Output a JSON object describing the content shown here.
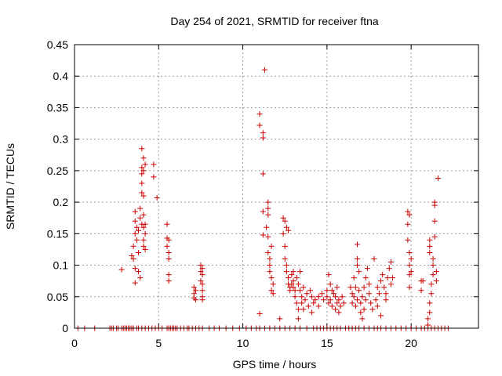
{
  "chart_data": {
    "type": "scatter",
    "title": "Day 254 of 2021, SRMTID for receiver ftna",
    "xlabel": "GPS time / hours",
    "ylabel": "SRMTID / TECUs",
    "xlim": [
      0,
      24
    ],
    "ylim": [
      0,
      0.45
    ],
    "xticks": [
      0,
      5,
      10,
      15,
      20
    ],
    "xtick_labels": [
      "0",
      "5",
      "10",
      "15",
      "20"
    ],
    "yticks": [
      0,
      0.05,
      0.1,
      0.15,
      0.2,
      0.25,
      0.3,
      0.35,
      0.4,
      0.45
    ],
    "ytick_labels": [
      "0",
      "0.05",
      "0.1",
      "0.15",
      "0.2",
      "0.25",
      "0.3",
      "0.35",
      "0.4",
      "0.45"
    ],
    "grid": true,
    "marker": "plus",
    "color": "#cc0000",
    "series": [
      {
        "points": [
          [
            0.2,
            0
          ],
          [
            0.6,
            0
          ],
          [
            1.2,
            0
          ],
          [
            2.1,
            0
          ],
          [
            2.2,
            0
          ],
          [
            2.3,
            0
          ],
          [
            2.5,
            0
          ],
          [
            2.6,
            0
          ],
          [
            2.8,
            0
          ],
          [
            2.9,
            0
          ],
          [
            3.0,
            0
          ],
          [
            3.1,
            0
          ],
          [
            3.2,
            0
          ],
          [
            3.3,
            0
          ],
          [
            3.4,
            0
          ],
          [
            3.5,
            0
          ],
          [
            3.7,
            0
          ],
          [
            3.8,
            0
          ],
          [
            4.0,
            0
          ],
          [
            4.2,
            0
          ],
          [
            4.4,
            0
          ],
          [
            4.6,
            0
          ],
          [
            4.8,
            0
          ],
          [
            5.0,
            0
          ],
          [
            5.2,
            0
          ],
          [
            5.5,
            0
          ],
          [
            5.6,
            0
          ],
          [
            5.7,
            0
          ],
          [
            5.8,
            0
          ],
          [
            5.9,
            0
          ],
          [
            6.0,
            0
          ],
          [
            6.1,
            0
          ],
          [
            6.3,
            0
          ],
          [
            6.5,
            0
          ],
          [
            6.7,
            0
          ],
          [
            6.8,
            0
          ],
          [
            7.0,
            0
          ],
          [
            7.2,
            0
          ],
          [
            7.4,
            0
          ],
          [
            7.6,
            0
          ],
          [
            8.0,
            0
          ],
          [
            8.3,
            0
          ],
          [
            8.6,
            0
          ],
          [
            9.0,
            0
          ],
          [
            9.4,
            0
          ],
          [
            9.8,
            0
          ],
          [
            10.2,
            0
          ],
          [
            10.5,
            0
          ],
          [
            10.8,
            0
          ],
          [
            11.0,
            0
          ],
          [
            11.3,
            0
          ],
          [
            11.6,
            0
          ],
          [
            11.9,
            0
          ],
          [
            12.2,
            0
          ],
          [
            12.5,
            0
          ],
          [
            12.8,
            0
          ],
          [
            13.1,
            0
          ],
          [
            13.4,
            0
          ],
          [
            13.8,
            0
          ],
          [
            14.2,
            0
          ],
          [
            14.4,
            0
          ],
          [
            14.6,
            0
          ],
          [
            14.8,
            0
          ],
          [
            15.0,
            0
          ],
          [
            15.2,
            0
          ],
          [
            15.4,
            0
          ],
          [
            15.6,
            0
          ],
          [
            15.8,
            0
          ],
          [
            16.1,
            0
          ],
          [
            16.3,
            0
          ],
          [
            16.5,
            0
          ],
          [
            16.7,
            0
          ],
          [
            16.9,
            0
          ],
          [
            17.2,
            0
          ],
          [
            17.5,
            0
          ],
          [
            17.8,
            0
          ],
          [
            18.0,
            0
          ],
          [
            18.2,
            0
          ],
          [
            18.5,
            0
          ],
          [
            18.8,
            0
          ],
          [
            19.1,
            0
          ],
          [
            19.4,
            0
          ],
          [
            19.7,
            0
          ],
          [
            20.0,
            0
          ],
          [
            20.3,
            0
          ],
          [
            20.6,
            0
          ],
          [
            20.8,
            0
          ],
          [
            21.0,
            0
          ],
          [
            21.2,
            0
          ],
          [
            21.4,
            0
          ],
          [
            21.6,
            0
          ],
          [
            21.8,
            0
          ],
          [
            22.0,
            0
          ],
          [
            22.2,
            0
          ],
          [
            2.8,
            0.093
          ],
          [
            3.4,
            0.115
          ],
          [
            3.5,
            0.11
          ],
          [
            3.5,
            0.13
          ],
          [
            3.6,
            0.15
          ],
          [
            3.6,
            0.17
          ],
          [
            3.6,
            0.185
          ],
          [
            3.6,
            0.095
          ],
          [
            3.6,
            0.072
          ],
          [
            3.7,
            0.16
          ],
          [
            3.7,
            0.14
          ],
          [
            3.8,
            0.155
          ],
          [
            3.8,
            0.12
          ],
          [
            3.8,
            0.09
          ],
          [
            3.9,
            0.08
          ],
          [
            3.9,
            0.175
          ],
          [
            3.9,
            0.19
          ],
          [
            4.0,
            0.165
          ],
          [
            4.0,
            0.215
          ],
          [
            4.0,
            0.23
          ],
          [
            4.0,
            0.245
          ],
          [
            4.0,
            0.255
          ],
          [
            4.0,
            0.285
          ],
          [
            4.1,
            0.27
          ],
          [
            4.1,
            0.25
          ],
          [
            4.1,
            0.21
          ],
          [
            4.1,
            0.18
          ],
          [
            4.1,
            0.16
          ],
          [
            4.1,
            0.14
          ],
          [
            4.1,
            0.13
          ],
          [
            4.2,
            0.125
          ],
          [
            4.2,
            0.15
          ],
          [
            4.2,
            0.165
          ],
          [
            4.2,
            0.26
          ],
          [
            4.7,
            0.26
          ],
          [
            4.7,
            0.24
          ],
          [
            4.9,
            0.207
          ],
          [
            5.5,
            0.165
          ],
          [
            5.5,
            0.143
          ],
          [
            5.5,
            0.13
          ],
          [
            5.6,
            0.12
          ],
          [
            5.6,
            0.14
          ],
          [
            5.6,
            0.11
          ],
          [
            5.6,
            0.085
          ],
          [
            5.6,
            0.075
          ],
          [
            7.1,
            0.065
          ],
          [
            7.1,
            0.055
          ],
          [
            7.1,
            0.048
          ],
          [
            7.2,
            0.06
          ],
          [
            7.2,
            0.045
          ],
          [
            7.5,
            0.1
          ],
          [
            7.5,
            0.09
          ],
          [
            7.5,
            0.075
          ],
          [
            7.6,
            0.07
          ],
          [
            7.6,
            0.06
          ],
          [
            7.6,
            0.05
          ],
          [
            7.6,
            0.045
          ],
          [
            7.6,
            0.095
          ],
          [
            7.6,
            0.085
          ],
          [
            11.0,
            0.023
          ],
          [
            11.0,
            0.34
          ],
          [
            11.0,
            0.322
          ],
          [
            11.2,
            0.31
          ],
          [
            11.2,
            0.302
          ],
          [
            11.2,
            0.245
          ],
          [
            11.2,
            0.185
          ],
          [
            11.2,
            0.148
          ],
          [
            11.3,
            0.41
          ],
          [
            11.4,
            0.16
          ],
          [
            11.5,
            0.2
          ],
          [
            11.5,
            0.19
          ],
          [
            11.5,
            0.18
          ],
          [
            11.5,
            0.145
          ],
          [
            11.5,
            0.12
          ],
          [
            11.6,
            0.11
          ],
          [
            11.6,
            0.1
          ],
          [
            11.6,
            0.09
          ],
          [
            11.7,
            0.13
          ],
          [
            11.7,
            0.08
          ],
          [
            11.7,
            0.06
          ],
          [
            11.8,
            0.07
          ],
          [
            11.8,
            0.055
          ],
          [
            12.2,
            0.015
          ],
          [
            12.4,
            0.175
          ],
          [
            12.4,
            0.15
          ],
          [
            12.5,
            0.17
          ],
          [
            12.5,
            0.13
          ],
          [
            12.5,
            0.11
          ],
          [
            12.6,
            0.16
          ],
          [
            12.6,
            0.1
          ],
          [
            12.6,
            0.09
          ],
          [
            12.7,
            0.155
          ],
          [
            12.7,
            0.08
          ],
          [
            12.7,
            0.07
          ],
          [
            12.8,
            0.065
          ],
          [
            12.8,
            0.06
          ],
          [
            12.9,
            0.085
          ],
          [
            12.9,
            0.07
          ],
          [
            13.0,
            0.075
          ],
          [
            13.0,
            0.065
          ],
          [
            13.0,
            0.09
          ],
          [
            13.1,
            0.06
          ],
          [
            13.1,
            0.05
          ],
          [
            13.2,
            0.04
          ],
          [
            13.2,
            0.08
          ],
          [
            13.3,
            0.07
          ],
          [
            13.3,
            0.03
          ],
          [
            13.3,
            0.015
          ],
          [
            13.4,
            0.09
          ],
          [
            13.4,
            0.06
          ],
          [
            13.5,
            0.05
          ],
          [
            13.5,
            0.04
          ],
          [
            13.6,
            0.03
          ],
          [
            13.6,
            0.065
          ],
          [
            13.7,
            0.045
          ],
          [
            13.8,
            0.055
          ],
          [
            13.9,
            0.035
          ],
          [
            14.0,
            0.06
          ],
          [
            14.1,
            0.05
          ],
          [
            14.1,
            0.025
          ],
          [
            14.2,
            0.04
          ],
          [
            14.3,
            0.045
          ],
          [
            14.5,
            0.05
          ],
          [
            14.5,
            0.035
          ],
          [
            14.7,
            0.055
          ],
          [
            14.8,
            0.045
          ],
          [
            15.0,
            0.05
          ],
          [
            15.0,
            0.06
          ],
          [
            15.1,
            0.085
          ],
          [
            15.1,
            0.04
          ],
          [
            15.2,
            0.07
          ],
          [
            15.2,
            0.045
          ],
          [
            15.3,
            0.06
          ],
          [
            15.3,
            0.035
          ],
          [
            15.4,
            0.055
          ],
          [
            15.5,
            0.03
          ],
          [
            15.5,
            0.05
          ],
          [
            15.6,
            0.065
          ],
          [
            15.6,
            0.04
          ],
          [
            15.7,
            0.025
          ],
          [
            15.7,
            0.045
          ],
          [
            15.8,
            0.035
          ],
          [
            15.9,
            0.05
          ],
          [
            16.0,
            0.04
          ],
          [
            16.4,
            0.065
          ],
          [
            16.5,
            0.055
          ],
          [
            16.5,
            0.04
          ],
          [
            16.6,
            0.08
          ],
          [
            16.6,
            0.05
          ],
          [
            16.7,
            0.035
          ],
          [
            16.7,
            0.065
          ],
          [
            16.8,
            0.045
          ],
          [
            16.8,
            0.1
          ],
          [
            16.8,
            0.11
          ],
          [
            16.8,
            0.133
          ],
          [
            16.9,
            0.09
          ],
          [
            16.9,
            0.06
          ],
          [
            17.0,
            0.04
          ],
          [
            17.0,
            0.025
          ],
          [
            17.1,
            0.015
          ],
          [
            17.1,
            0.05
          ],
          [
            17.2,
            0.03
          ],
          [
            17.2,
            0.065
          ],
          [
            17.3,
            0.045
          ],
          [
            17.3,
            0.08
          ],
          [
            17.4,
            0.095
          ],
          [
            17.5,
            0.07
          ],
          [
            17.5,
            0.055
          ],
          [
            17.6,
            0.04
          ],
          [
            17.7,
            0.03
          ],
          [
            17.8,
            0.11
          ],
          [
            17.9,
            0.045
          ],
          [
            18.0,
            0.065
          ],
          [
            18.0,
            0.035
          ],
          [
            18.1,
            0.055
          ],
          [
            18.2,
            0.02
          ],
          [
            18.2,
            0.075
          ],
          [
            18.3,
            0.085
          ],
          [
            18.4,
            0.065
          ],
          [
            18.5,
            0.055
          ],
          [
            18.5,
            0.045
          ],
          [
            18.6,
            0.08
          ],
          [
            18.7,
            0.095
          ],
          [
            18.8,
            0.105
          ],
          [
            18.8,
            0.07
          ],
          [
            18.9,
            0.08
          ],
          [
            19.8,
            0.185
          ],
          [
            19.8,
            0.165
          ],
          [
            19.8,
            0.14
          ],
          [
            19.9,
            0.12
          ],
          [
            19.9,
            0.1
          ],
          [
            19.9,
            0.085
          ],
          [
            19.9,
            0.065
          ],
          [
            19.9,
            0.18
          ],
          [
            20.0,
            0.11
          ],
          [
            20.0,
            0.09
          ],
          [
            20.6,
            0.075
          ],
          [
            20.6,
            0.06
          ],
          [
            20.7,
            0.075
          ],
          [
            21.0,
            0.005
          ],
          [
            21.0,
            0.015
          ],
          [
            21.1,
            0.025
          ],
          [
            21.1,
            0.04
          ],
          [
            21.1,
            0.14
          ],
          [
            21.1,
            0.13
          ],
          [
            21.1,
            0.12
          ],
          [
            21.2,
            0.055
          ],
          [
            21.2,
            0.07
          ],
          [
            21.3,
            0.085
          ],
          [
            21.3,
            0.1
          ],
          [
            21.3,
            0.11
          ],
          [
            21.4,
            0.145
          ],
          [
            21.4,
            0.17
          ],
          [
            21.4,
            0.195
          ],
          [
            21.4,
            0.2
          ],
          [
            21.5,
            0.09
          ],
          [
            21.5,
            0.075
          ],
          [
            21.6,
            0.238
          ]
        ]
      }
    ]
  }
}
